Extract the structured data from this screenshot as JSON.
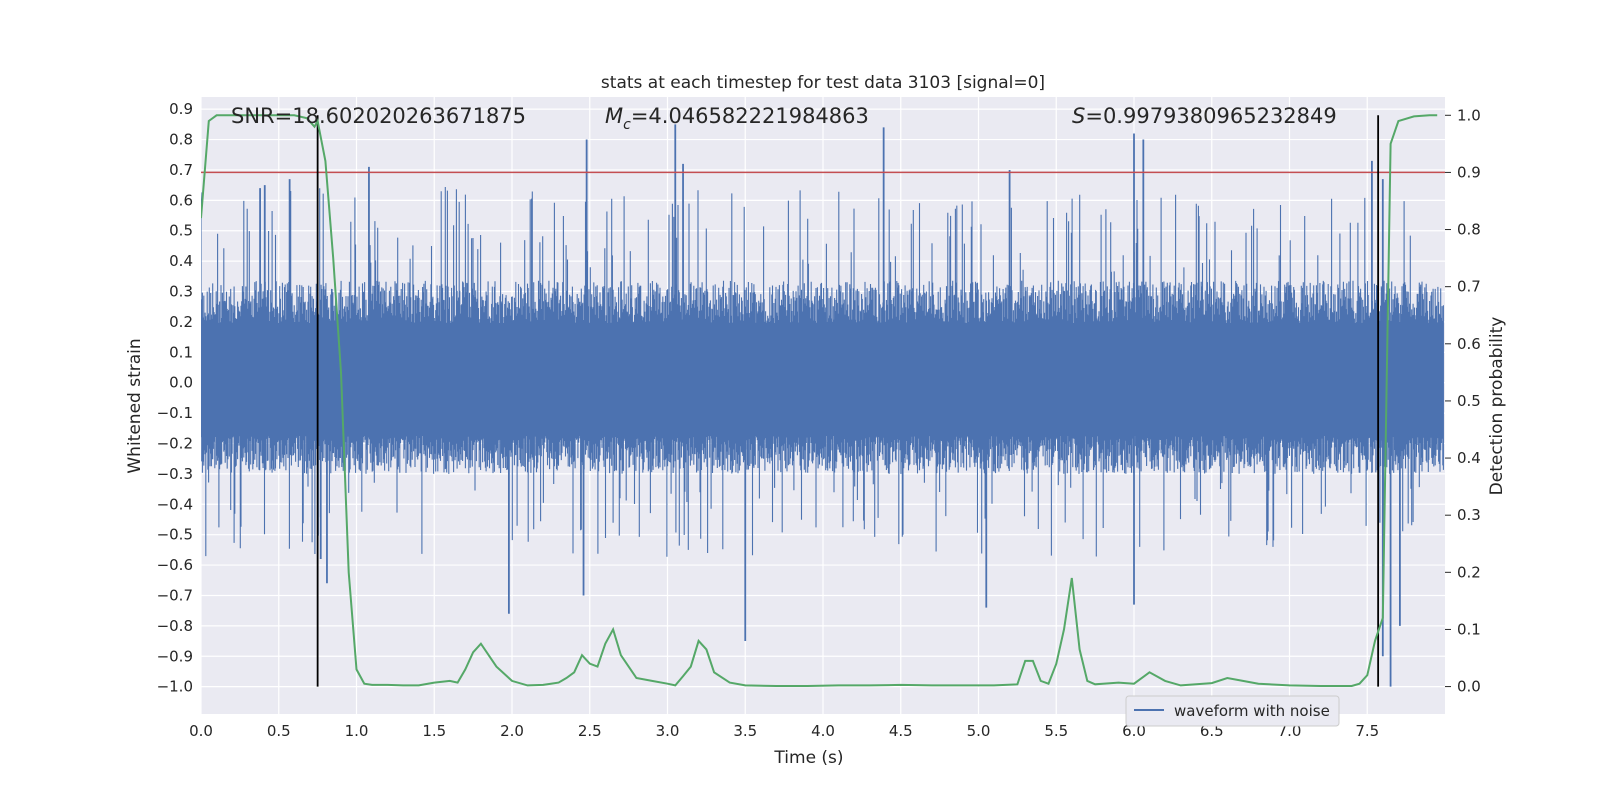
{
  "chart_data": {
    "type": "line",
    "title": "stats at each timestep for test data 3103 [signal=0]",
    "xlabel": "Time (s)",
    "ylabel_left": "Whitened strain",
    "ylabel_right": "Detection probability",
    "xlim": [
      0.0,
      8.0
    ],
    "ylim_left": [
      -1.09,
      0.94
    ],
    "ylim_right": [
      -0.048,
      1.032
    ],
    "x_ticks": [
      0.0,
      0.5,
      1.0,
      1.5,
      2.0,
      2.5,
      3.0,
      3.5,
      4.0,
      4.5,
      5.0,
      5.5,
      6.0,
      6.5,
      7.0,
      7.5
    ],
    "x_tick_labels": [
      "0.0",
      "0.5",
      "1.0",
      "1.5",
      "2.0",
      "2.5",
      "3.0",
      "3.5",
      "4.0",
      "4.5",
      "5.0",
      "5.5",
      "6.0",
      "6.5",
      "7.0",
      "7.5"
    ],
    "y_left_ticks": [
      0.9,
      0.8,
      0.7,
      0.6,
      0.5,
      0.4,
      0.3,
      0.2,
      0.1,
      0.0,
      -0.1,
      -0.2,
      -0.3,
      -0.4,
      -0.5,
      -0.6,
      -0.7,
      -0.8,
      -0.9,
      -1.0
    ],
    "y_left_tick_labels": [
      "0.9",
      "0.8",
      "0.7",
      "0.6",
      "0.5",
      "0.4",
      "0.3",
      "0.2",
      "0.1",
      "0.0",
      "−0.1",
      "−0.2",
      "−0.3",
      "−0.4",
      "−0.5",
      "−0.6",
      "−0.7",
      "−0.8",
      "−0.9",
      "−1.0"
    ],
    "y_right_ticks": [
      1.0,
      0.9,
      0.8,
      0.7,
      0.6,
      0.5,
      0.4,
      0.3,
      0.2,
      0.1,
      0.0
    ],
    "y_right_tick_labels": [
      "1.0",
      "0.9",
      "0.8",
      "0.7",
      "0.6",
      "0.5",
      "0.4",
      "0.3",
      "0.2",
      "0.1",
      "0.0"
    ],
    "grid": true,
    "legend_placement": "lower-right",
    "annotations": {
      "snr": "SNR=18.602020263671875",
      "mc_symbol": "M",
      "mc_subscript": "c",
      "mc_value": "=4.046582221984863",
      "s_symbol": "S",
      "s_value": "=0.9979380965232849"
    },
    "threshold": {
      "y_right": 0.9,
      "color": "#c44e52"
    },
    "markers": {
      "x": [
        0.75,
        7.57
      ],
      "y_right_range": [
        0.0,
        1.0
      ],
      "color": "#000000"
    },
    "waveform": {
      "name": "waveform with noise",
      "color": "#4c72b0",
      "duration": 7.99,
      "typical_envelope": [
        -0.25,
        0.28
      ],
      "peaks_positive": [
        [
          0.38,
          0.64
        ],
        [
          0.41,
          0.65
        ],
        [
          0.57,
          0.67
        ],
        [
          1.08,
          0.71
        ],
        [
          2.48,
          0.8
        ],
        [
          3.05,
          0.85
        ],
        [
          3.1,
          0.72
        ],
        [
          4.39,
          0.84
        ],
        [
          5.2,
          0.7
        ],
        [
          6.0,
          0.82
        ],
        [
          6.06,
          0.8
        ],
        [
          7.53,
          0.73
        ],
        [
          7.6,
          0.67
        ]
      ],
      "peaks_negative": [
        [
          0.77,
          -0.58
        ],
        [
          0.81,
          -0.66
        ],
        [
          1.98,
          -0.76
        ],
        [
          2.46,
          -0.7
        ],
        [
          3.5,
          -0.85
        ],
        [
          5.05,
          -0.74
        ],
        [
          6.0,
          -0.73
        ],
        [
          7.6,
          -0.9
        ],
        [
          7.65,
          -1.0
        ],
        [
          7.71,
          -0.8
        ]
      ]
    },
    "probability": {
      "color": "#55a868",
      "x": [
        0.0,
        0.05,
        0.1,
        0.2,
        0.3,
        0.4,
        0.5,
        0.6,
        0.68,
        0.73,
        0.75,
        0.8,
        0.85,
        0.9,
        0.95,
        1.0,
        1.05,
        1.1,
        1.2,
        1.3,
        1.4,
        1.5,
        1.6,
        1.65,
        1.7,
        1.75,
        1.8,
        1.9,
        2.0,
        2.1,
        2.2,
        2.25,
        2.3,
        2.35,
        2.4,
        2.45,
        2.5,
        2.55,
        2.6,
        2.65,
        2.7,
        2.8,
        2.9,
        3.0,
        3.05,
        3.1,
        3.15,
        3.2,
        3.25,
        3.3,
        3.4,
        3.5,
        3.7,
        3.9,
        4.1,
        4.3,
        4.5,
        4.7,
        4.9,
        5.1,
        5.25,
        5.3,
        5.35,
        5.4,
        5.45,
        5.5,
        5.55,
        5.6,
        5.65,
        5.7,
        5.75,
        5.8,
        5.9,
        6.0,
        6.1,
        6.2,
        6.3,
        6.4,
        6.5,
        6.6,
        6.7,
        6.8,
        7.0,
        7.2,
        7.4,
        7.45,
        7.5,
        7.55,
        7.6,
        7.65,
        7.7,
        7.8,
        7.9,
        7.95
      ],
      "y": [
        0.82,
        0.99,
        1.0,
        1.0,
        1.0,
        1.0,
        1.0,
        1.0,
        0.995,
        0.98,
        0.99,
        0.92,
        0.75,
        0.55,
        0.2,
        0.03,
        0.005,
        0.003,
        0.003,
        0.002,
        0.002,
        0.007,
        0.01,
        0.007,
        0.03,
        0.06,
        0.075,
        0.035,
        0.01,
        0.002,
        0.003,
        0.005,
        0.007,
        0.015,
        0.025,
        0.055,
        0.04,
        0.035,
        0.075,
        0.1,
        0.055,
        0.015,
        0.01,
        0.005,
        0.002,
        0.018,
        0.035,
        0.08,
        0.065,
        0.025,
        0.007,
        0.002,
        0.001,
        0.001,
        0.002,
        0.002,
        0.003,
        0.002,
        0.002,
        0.002,
        0.004,
        0.045,
        0.045,
        0.01,
        0.005,
        0.04,
        0.1,
        0.19,
        0.065,
        0.01,
        0.004,
        0.005,
        0.007,
        0.005,
        0.025,
        0.01,
        0.002,
        0.004,
        0.006,
        0.015,
        0.01,
        0.005,
        0.002,
        0.001,
        0.001,
        0.005,
        0.02,
        0.08,
        0.12,
        0.95,
        0.99,
        0.998,
        1.0,
        1.0
      ]
    }
  }
}
